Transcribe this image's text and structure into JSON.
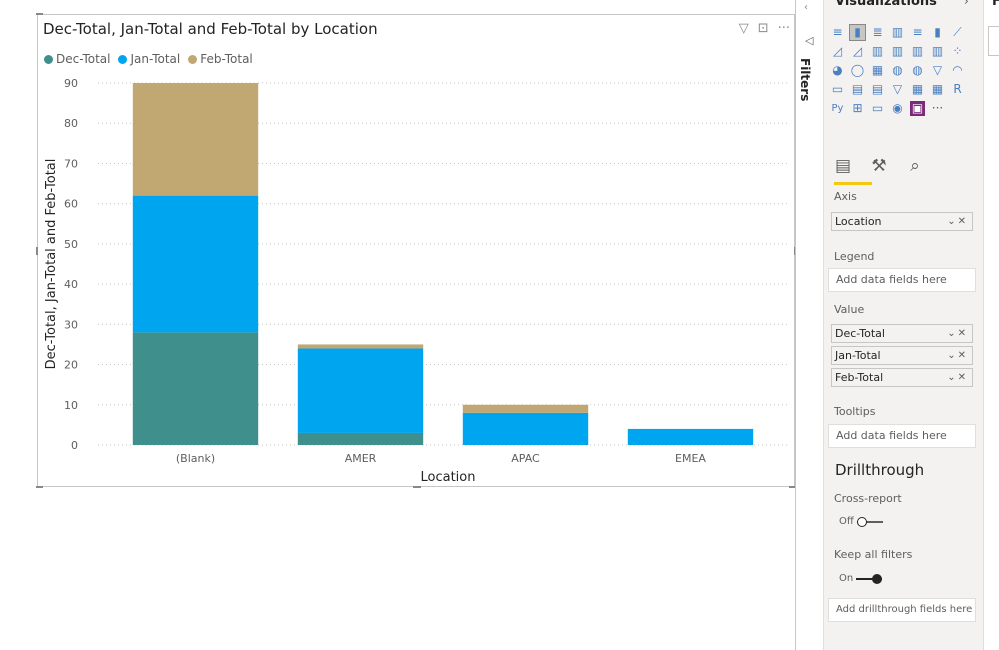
{
  "visual": {
    "title": "Dec-Total, Jan-Total and Feb-Total by Location",
    "header_icons": [
      "filter-icon",
      "focus-mode-icon",
      "more-options-icon"
    ]
  },
  "chart_data": {
    "type": "bar",
    "stacked": true,
    "orientation": "vertical",
    "title": "Dec-Total, Jan-Total and Feb-Total by Location",
    "xlabel": "Location",
    "ylabel": "Dec-Total, Jan-Total and Feb-Total",
    "categories": [
      "(Blank)",
      "AMER",
      "APAC",
      "EMEA"
    ],
    "series": [
      {
        "name": "Dec-Total",
        "color": "#3f8f8c",
        "values": [
          28,
          3,
          0,
          0
        ]
      },
      {
        "name": "Jan-Total",
        "color": "#00a5ef",
        "values": [
          34,
          21,
          8,
          4
        ]
      },
      {
        "name": "Feb-Total",
        "color": "#c1a772",
        "values": [
          28,
          1,
          2,
          0
        ]
      }
    ],
    "ylim": [
      0,
      90
    ],
    "yticks": [
      0,
      10,
      20,
      30,
      40,
      50,
      60,
      70,
      80,
      90
    ],
    "grid": true,
    "legend_position": "top-left"
  },
  "filters_pane": {
    "label": "Filters"
  },
  "viz_pane": {
    "title": "Visualizations",
    "icons": [
      "stacked-bar-icon",
      "stacked-column-icon",
      "clustered-bar-icon",
      "clustered-column-icon",
      "100-stacked-bar-icon",
      "100-stacked-column-icon",
      "line-chart-icon",
      "area-chart-icon",
      "stacked-area-icon",
      "line-clustered-column-icon",
      "line-stacked-column-icon",
      "ribbon-chart-icon",
      "waterfall-chart-icon",
      "scatter-chart-icon",
      "pie-chart-icon",
      "donut-chart-icon",
      "treemap-icon",
      "map-icon",
      "filled-map-icon",
      "funnel-chart-icon",
      "gauge-icon",
      "card-icon",
      "multi-row-card-icon",
      "kpi-icon",
      "slicer-icon",
      "table-icon",
      "matrix-icon",
      "r-visual-icon",
      "python-visual-icon",
      "key-influencers-icon",
      "qa-visual-icon",
      "arcgis-map-icon",
      "custom-visual-icon",
      "more-visuals-icon"
    ],
    "icon_glyphs": [
      "≡",
      "▮",
      "≣",
      "▥",
      "≡",
      "▮",
      "⟋",
      "◿",
      "◿",
      "▥",
      "▥",
      "▥",
      "▥",
      "⁘",
      "◕",
      "◯",
      "▦",
      "◍",
      "◍",
      "▽",
      "◠",
      "▭",
      "▤",
      "▤",
      "▽",
      "▦",
      "▦",
      "R",
      "Py",
      "⊞",
      "▭",
      "◉",
      "▣",
      "···"
    ],
    "tabs": [
      "fields-tab-icon",
      "format-tab-icon",
      "analytics-tab-icon"
    ],
    "axis_label": "Axis",
    "axis_field": "Location",
    "legend_label": "Legend",
    "legend_placeholder": "Add data fields here",
    "value_label": "Value",
    "value_fields": [
      "Dec-Total",
      "Jan-Total",
      "Feb-Total"
    ],
    "tooltips_label": "Tooltips",
    "tooltips_placeholder": "Add data fields here",
    "drillthrough_heading": "Drillthrough",
    "cross_report_label": "Cross-report",
    "cross_report_state": "Off",
    "keep_filters_label": "Keep all filters",
    "keep_filters_state": "On",
    "drillthrough_placeholder": "Add drillthrough fields here"
  },
  "fields_pane": {
    "title_char": "F"
  }
}
